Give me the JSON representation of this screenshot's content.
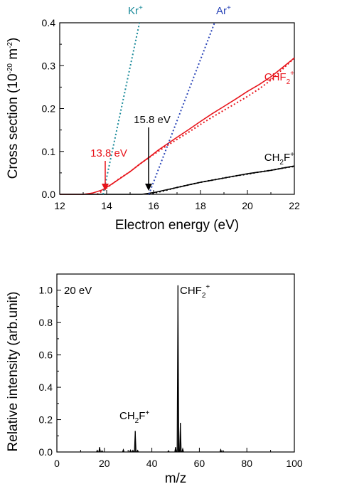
{
  "chart_data": [
    {
      "type": "line",
      "xlabel": "Electron energy (eV)",
      "ylabel_parts": [
        "Cross section (10",
        "-20",
        " m",
        "-2",
        ")"
      ],
      "xlim": [
        12,
        22
      ],
      "ylim": [
        0,
        0.4
      ],
      "xticks": [
        "12",
        "14",
        "16",
        "18",
        "20",
        "22"
      ],
      "yticks": [
        "0.0",
        "0.1",
        "0.2",
        "0.3",
        "0.4"
      ],
      "series": [
        {
          "name_parts": [
            "CHF",
            "2",
            "+"
          ],
          "color": "#e8141b",
          "style": "solid",
          "x": [
            12.0,
            13.0,
            13.4,
            13.8,
            14.2,
            14.6,
            15.0,
            15.4,
            15.8,
            16.2,
            16.6,
            17.0,
            17.5,
            18.0,
            18.5,
            19.0,
            19.5,
            20.0,
            20.5,
            21.0,
            21.5,
            22.0
          ],
          "y": [
            0.0,
            0.0,
            0.003,
            0.01,
            0.023,
            0.038,
            0.053,
            0.07,
            0.086,
            0.103,
            0.118,
            0.133,
            0.151,
            0.17,
            0.188,
            0.205,
            0.222,
            0.24,
            0.256,
            0.274,
            0.296,
            0.318
          ]
        },
        {
          "name": "CHF2+ fit",
          "color": "#e8141b",
          "style": "dotted",
          "x": [
            13.6,
            14.0,
            14.5,
            15.0,
            15.5,
            16.0,
            16.5,
            17.0,
            17.5,
            18.0,
            18.5,
            19.0,
            19.5,
            20.0,
            20.5,
            21.0,
            21.5,
            22.0
          ],
          "y": [
            0.0,
            0.015,
            0.035,
            0.053,
            0.074,
            0.093,
            0.111,
            0.128,
            0.145,
            0.163,
            0.18,
            0.196,
            0.212,
            0.228,
            0.246,
            0.266,
            0.292,
            0.318
          ]
        },
        {
          "name_parts": [
            "CH",
            "2",
            "F",
            "+"
          ],
          "color": "#000000",
          "style": "solid",
          "x": [
            12.0,
            15.5,
            16.0,
            16.5,
            17.0,
            17.5,
            18.0,
            18.5,
            19.0,
            19.5,
            20.0,
            20.5,
            21.0,
            21.5,
            22.0
          ],
          "y": [
            0.0,
            0.0,
            0.004,
            0.01,
            0.016,
            0.022,
            0.028,
            0.033,
            0.038,
            0.043,
            0.048,
            0.052,
            0.056,
            0.061,
            0.066
          ]
        },
        {
          "name": "CH2F+ fit",
          "color": "#000000",
          "style": "dotted",
          "x": [
            15.8,
            16.5,
            17.0,
            17.5,
            18.0,
            18.5,
            19.0,
            19.5,
            20.0,
            20.5,
            21.0,
            21.5,
            22.0
          ],
          "y": [
            0.0,
            0.009,
            0.016,
            0.022,
            0.028,
            0.033,
            0.038,
            0.043,
            0.047,
            0.052,
            0.056,
            0.061,
            0.065
          ]
        },
        {
          "name_parts": [
            "Kr",
            "+"
          ],
          "color": "#1a8a9a",
          "style": "dotted",
          "x": [
            13.85,
            15.4
          ],
          "y": [
            0.0,
            0.4
          ]
        },
        {
          "name_parts": [
            "Ar",
            "+"
          ],
          "color": "#2b46b8",
          "style": "dotted",
          "x": [
            15.8,
            18.6
          ],
          "y": [
            0.0,
            0.4
          ]
        }
      ],
      "annotations": [
        {
          "text": "13.8 eV",
          "x": 13.8,
          "color": "#e8141b"
        },
        {
          "text": "15.8 eV",
          "x": 15.8,
          "color": "#000000"
        }
      ]
    },
    {
      "type": "bar",
      "xlabel": "m/z",
      "ylabel": "Relative intensity (arb.unit)",
      "xlim": [
        0,
        100
      ],
      "ylim": [
        0,
        1.1
      ],
      "xticks": [
        "0",
        "20",
        "40",
        "60",
        "80",
        "100"
      ],
      "yticks": [
        "0.0",
        "0.2",
        "0.4",
        "0.6",
        "0.8",
        "1.0"
      ],
      "energy_label": "20 eV",
      "peaks": [
        {
          "x": 17,
          "y": 0.01
        },
        {
          "x": 18,
          "y": 0.03
        },
        {
          "x": 19,
          "y": 0.008
        },
        {
          "x": 28,
          "y": 0.015
        },
        {
          "x": 31,
          "y": 0.012
        },
        {
          "x": 32,
          "y": 0.01
        },
        {
          "x": 33,
          "y": 0.13
        },
        {
          "x": 34,
          "y": 0.01
        },
        {
          "x": 47,
          "y": 0.008
        },
        {
          "x": 50,
          "y": 0.03
        },
        {
          "x": 51,
          "y": 1.03
        },
        {
          "x": 52,
          "y": 0.18
        },
        {
          "x": 53,
          "y": 0.02
        },
        {
          "x": 69,
          "y": 0.015
        },
        {
          "x": 70,
          "y": 0.005
        }
      ],
      "peak_labels": [
        {
          "parts": [
            "CH",
            "2",
            "F",
            "+"
          ],
          "x": 33
        },
        {
          "parts": [
            "CHF",
            "2",
            "+"
          ],
          "x": 51
        }
      ]
    }
  ]
}
